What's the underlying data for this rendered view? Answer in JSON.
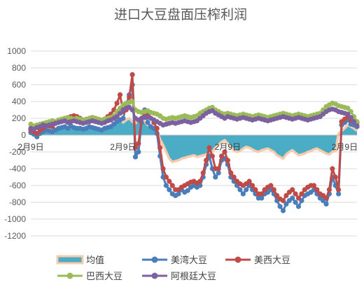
{
  "chart_data": {
    "type": "line",
    "title": "进口大豆盘面压榨利润",
    "ylim": [
      -1200,
      1000
    ],
    "yticks": [
      1000,
      800,
      600,
      400,
      200,
      0,
      -200,
      -400,
      -600,
      -800,
      -1000,
      -1200
    ],
    "ytick_labels": [
      "1000",
      "800",
      "600",
      "400",
      "200",
      "0",
      "-200",
      "-400",
      "-600",
      "-800",
      "-1000",
      "-1200"
    ],
    "grid": true,
    "legend_position": "bottom",
    "x_tick_labels": [
      "2月9日",
      "2月9日",
      "2月9日",
      "2月9日"
    ],
    "x_tick_index": [
      0,
      30,
      64,
      102
    ],
    "series": [
      {
        "name": "均值",
        "style": "area",
        "color": "#4bacc6",
        "edge_color": "#f8cbad",
        "values": [
          40,
          15,
          25,
          20,
          50,
          60,
          50,
          40,
          60,
          80,
          90,
          100,
          90,
          120,
          100,
          90,
          80,
          70,
          80,
          110,
          90,
          80,
          70,
          60,
          80,
          100,
          120,
          150,
          170,
          200,
          150,
          180,
          200,
          160,
          140,
          180,
          220,
          160,
          120,
          100,
          80,
          50,
          -50,
          -120,
          -200,
          -280,
          -320,
          -310,
          -300,
          -280,
          -270,
          -260,
          -250,
          -240,
          -260,
          -250,
          -240,
          -230,
          -220,
          -200,
          -150,
          -120,
          -80,
          -60,
          -100,
          -140,
          -180,
          -200,
          -190,
          -160,
          -140,
          -150,
          -170,
          -190,
          -200,
          -180,
          -170,
          -160,
          -180,
          -200,
          -240,
          -260,
          -280,
          -230,
          -200,
          -180,
          -210,
          -240,
          -230,
          -220,
          -200,
          -190,
          -170,
          -160,
          -180,
          -200,
          -220,
          -230,
          -200,
          -190,
          20,
          50,
          80,
          120,
          100,
          80,
          50
        ]
      },
      {
        "name": "美湾大豆",
        "style": "line",
        "color": "#4a7ebb",
        "values": [
          30,
          10,
          -20,
          20,
          40,
          60,
          50,
          40,
          60,
          80,
          90,
          100,
          80,
          110,
          90,
          80,
          80,
          70,
          80,
          100,
          90,
          80,
          70,
          60,
          80,
          90,
          100,
          130,
          160,
          180,
          200,
          350,
          480,
          600,
          -260,
          -200,
          150,
          300,
          150,
          100,
          80,
          20,
          -250,
          -500,
          -600,
          -650,
          -700,
          -720,
          -700,
          -650,
          -680,
          -660,
          -620,
          -600,
          -620,
          -600,
          -500,
          -350,
          -250,
          -400,
          -500,
          -450,
          -300,
          -280,
          -350,
          -500,
          -550,
          -600,
          -650,
          -700,
          -650,
          -600,
          -650,
          -700,
          -750,
          -750,
          -700,
          -680,
          -650,
          -700,
          -780,
          -850,
          -900,
          -820,
          -780,
          -750,
          -800,
          -850,
          -780,
          -720,
          -700,
          -680,
          -650,
          -700,
          -750,
          -780,
          -820,
          -700,
          -500,
          -600,
          -700,
          120,
          150,
          180,
          130,
          120,
          100
        ]
      },
      {
        "name": "美西大豆",
        "style": "line",
        "color": "#be4b48",
        "values": [
          60,
          40,
          20,
          60,
          80,
          120,
          110,
          100,
          140,
          160,
          170,
          180,
          200,
          220,
          230,
          220,
          200,
          180,
          170,
          190,
          210,
          200,
          180,
          170,
          190,
          220,
          250,
          300,
          380,
          480,
          280,
          300,
          450,
          720,
          -150,
          -100,
          200,
          250,
          280,
          200,
          150,
          80,
          -150,
          -400,
          -500,
          -550,
          -600,
          -650,
          -650,
          -620,
          -600,
          -580,
          -560,
          -550,
          -570,
          -550,
          -450,
          -300,
          -150,
          -250,
          -400,
          -400,
          -250,
          -200,
          -300,
          -450,
          -500,
          -550,
          -580,
          -600,
          -580,
          -550,
          -600,
          -650,
          -700,
          -700,
          -650,
          -620,
          -600,
          -650,
          -720,
          -760,
          -780,
          -720,
          -680,
          -650,
          -700,
          -750,
          -700,
          -650,
          -620,
          -600,
          -600,
          -650,
          -700,
          -720,
          -750,
          -650,
          -400,
          -500,
          -650,
          160,
          190,
          220,
          180,
          170,
          150
        ]
      },
      {
        "name": "巴西大豆",
        "style": "line",
        "color": "#9bbb59",
        "values": [
          130,
          110,
          120,
          130,
          140,
          150,
          160,
          170,
          160,
          180,
          190,
          200,
          210,
          200,
          190,
          200,
          190,
          180,
          190,
          200,
          210,
          200,
          190,
          180,
          190,
          200,
          210,
          230,
          280,
          320,
          360,
          380,
          390,
          400,
          300,
          280,
          270,
          280,
          290,
          270,
          260,
          250,
          230,
          200,
          190,
          200,
          210,
          200,
          210,
          220,
          230,
          220,
          210,
          220,
          230,
          260,
          280,
          300,
          320,
          330,
          300,
          280,
          260,
          250,
          260,
          250,
          240,
          230,
          240,
          250,
          240,
          230,
          220,
          230,
          240,
          230,
          220,
          210,
          220,
          230,
          240,
          250,
          260,
          250,
          240,
          230,
          240,
          250,
          240,
          230,
          220,
          230,
          240,
          250,
          260,
          300,
          340,
          360,
          380,
          370,
          350,
          340,
          330,
          320,
          280,
          220,
          160
        ]
      },
      {
        "name": "阿根廷大豆",
        "style": "line",
        "color": "#7d60a0",
        "values": [
          80,
          70,
          90,
          100,
          120,
          110,
          120,
          130,
          140,
          150,
          160,
          170,
          150,
          160,
          170,
          160,
          150,
          140,
          150,
          160,
          170,
          160,
          150,
          140,
          150,
          170,
          180,
          200,
          220,
          260,
          300,
          320,
          330,
          300,
          200,
          180,
          200,
          210,
          220,
          200,
          180,
          160,
          140,
          120,
          130,
          140,
          150,
          140,
          150,
          160,
          170,
          160,
          150,
          160,
          170,
          200,
          230,
          260,
          280,
          290,
          260,
          240,
          220,
          200,
          220,
          210,
          200,
          190,
          200,
          210,
          200,
          190,
          180,
          190,
          200,
          190,
          180,
          170,
          180,
          190,
          200,
          210,
          220,
          210,
          200,
          190,
          200,
          210,
          200,
          190,
          180,
          190,
          200,
          210,
          220,
          250,
          280,
          300,
          310,
          300,
          280,
          270,
          260,
          250,
          210,
          160,
          110
        ]
      }
    ]
  }
}
